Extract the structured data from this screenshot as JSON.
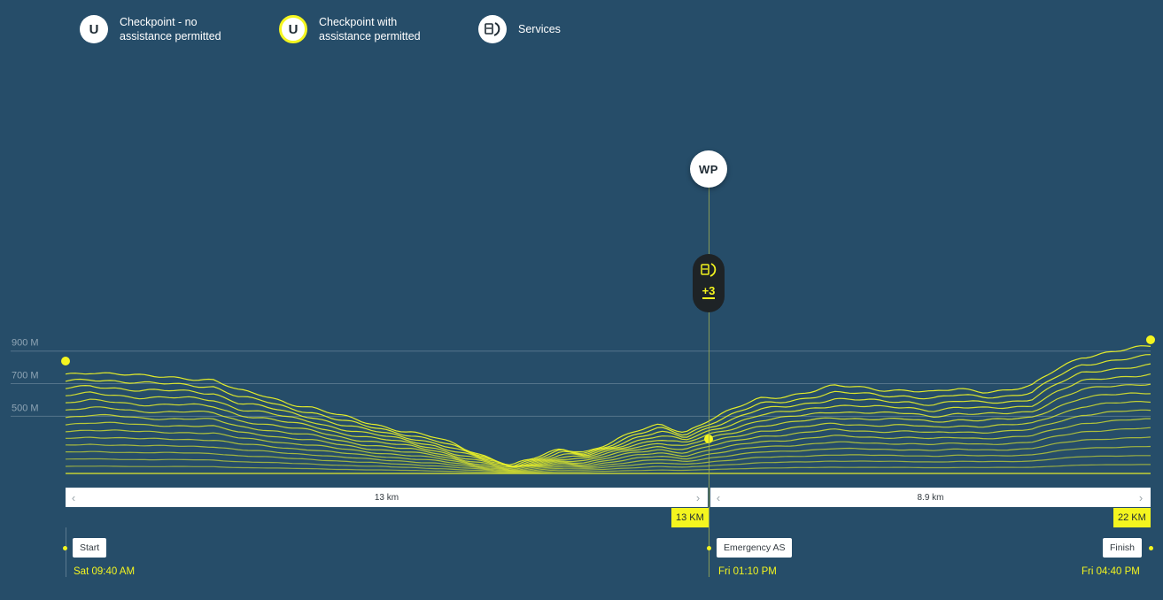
{
  "legend": {
    "no_assist": {
      "icon_text": "U",
      "label": "Checkpoint - no assistance permitted",
      "icon": "checkpoint-icon"
    },
    "assist": {
      "icon_text": "U",
      "label": "Checkpoint with assistance permitted",
      "icon": "checkpoint-assist-icon"
    },
    "services": {
      "label": "Services",
      "icon": "services-icon"
    }
  },
  "waypoint": {
    "label": "WP",
    "services_count": "+3",
    "services_icon": "drink-food-icon"
  },
  "segments": [
    {
      "distance_label": "13 km",
      "km_badge": "13 KM"
    },
    {
      "distance_label": "8.9 km",
      "km_badge": "22 KM"
    }
  ],
  "stops": {
    "start": {
      "label": "Start",
      "time": "Sat 09:40 AM"
    },
    "mid": {
      "label": "Emergency AS",
      "time": "Fri 01:10 PM"
    },
    "finish": {
      "label": "Finish",
      "time": "Fri 04:40 PM"
    }
  },
  "colors": {
    "background": "#264d69",
    "profile": "#e3ec2a",
    "accent": "#f4f51f"
  },
  "chart_data": {
    "type": "line",
    "title": "",
    "xlabel": "",
    "ylabel": "",
    "y_ticks": [
      {
        "value": 900,
        "label": "900 M"
      },
      {
        "value": 700,
        "label": "700 M"
      },
      {
        "value": 500,
        "label": "500 M"
      }
    ],
    "xlim": [
      0,
      21.9
    ],
    "ylim": [
      225,
      1045
    ],
    "grid": true,
    "series": [
      {
        "x": [
          0,
          0.5,
          1,
          1.5,
          2,
          2.5,
          3,
          3.5,
          4,
          4.5,
          5,
          5.5,
          6,
          6.5,
          7,
          7.5,
          8,
          8.5,
          9,
          9.5,
          10,
          10.5,
          11,
          11.5,
          12,
          12.5,
          13,
          13.5,
          14,
          14.5,
          15,
          15.5,
          16,
          16.5,
          17,
          17.5,
          18,
          18.5,
          19,
          19.5,
          20,
          20.5,
          21,
          21.5,
          21.9
        ],
        "y": [
          830,
          850,
          840,
          820,
          815,
          812,
          800,
          730,
          700,
          660,
          630,
          580,
          540,
          510,
          480,
          440,
          380,
          330,
          280,
          320,
          370,
          360,
          420,
          480,
          520,
          480,
          560,
          620,
          680,
          700,
          730,
          760,
          750,
          740,
          740,
          720,
          740,
          730,
          740,
          760,
          860,
          940,
          970,
          990,
          1000
        ]
      }
    ]
  }
}
